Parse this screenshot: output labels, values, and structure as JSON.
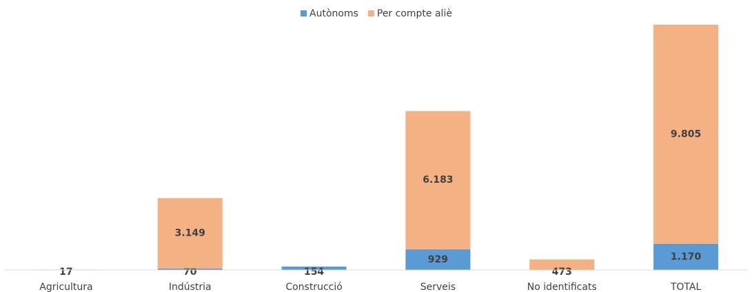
{
  "chart_data": {
    "type": "stacked_bar",
    "categories": [
      "Agricultura",
      "Indústria",
      "Construcció",
      "Serveis",
      "No identificats",
      "TOTAL"
    ],
    "series": [
      {
        "name": "Autònoms",
        "color": "#5b9bd5",
        "values": [
          17,
          70,
          154,
          929,
          null,
          1170
        ],
        "value_labels": [
          "17",
          "70",
          "154",
          "929",
          null,
          "1.170"
        ]
      },
      {
        "name": "Per compte aliè",
        "color": "#f4b183",
        "values": [
          null,
          3149,
          null,
          6183,
          473,
          9805
        ],
        "value_labels": [
          null,
          "3.149",
          null,
          "6.183",
          "473",
          "9.805"
        ]
      }
    ],
    "legend": "top"
  }
}
